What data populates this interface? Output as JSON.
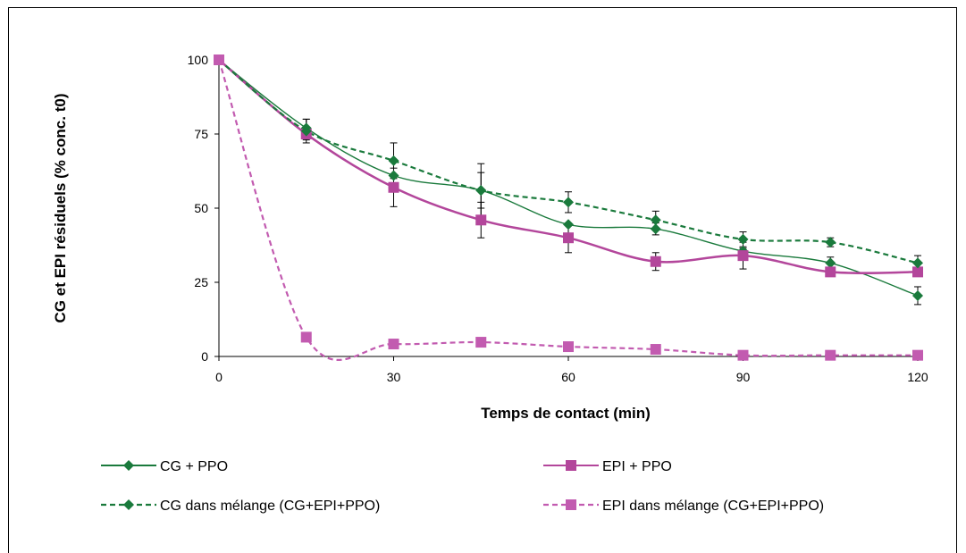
{
  "chart_data": {
    "type": "line",
    "title": "",
    "xlabel": "Temps de contact (min)",
    "ylabel": "CG et  EPI résiduels  (% conc. t0)",
    "xlim": [
      0,
      120
    ],
    "ylim": [
      0,
      100
    ],
    "xticks": [
      0,
      30,
      60,
      90,
      120
    ],
    "yticks": [
      0,
      25,
      50,
      75,
      100
    ],
    "grid": false,
    "legend_position": "bottom",
    "series": [
      {
        "name": "CG + PPO",
        "color": "#1a7a3c",
        "dash": "solid",
        "marker": "diamond",
        "x": [
          0,
          15,
          30,
          45,
          60,
          75,
          90,
          105,
          120
        ],
        "y": [
          100,
          77,
          61,
          56,
          44.5,
          43,
          35.5,
          31.5,
          20.5
        ],
        "err": [
          0,
          3,
          0,
          6,
          0,
          2,
          1,
          2,
          3
        ]
      },
      {
        "name": "EPI + PPO",
        "color": "#b3469b",
        "dash": "solid",
        "marker": "square",
        "x": [
          0,
          15,
          30,
          45,
          60,
          75,
          90,
          105,
          120
        ],
        "y": [
          100,
          75,
          57,
          46,
          40,
          32,
          34,
          28.5,
          28.5
        ],
        "err": [
          0,
          2,
          6.5,
          6,
          5,
          3,
          4.5,
          0,
          0
        ]
      },
      {
        "name": "CG dans mélange (CG+EPI+PPO)",
        "color": "#1a7a3c",
        "dash": "dashed",
        "marker": "diamond",
        "x": [
          0,
          15,
          30,
          45,
          60,
          75,
          90,
          105,
          120
        ],
        "y": [
          100,
          76,
          66,
          56,
          52,
          46,
          39.5,
          38.5,
          31.5
        ],
        "err": [
          0,
          4,
          6,
          9,
          3.5,
          3,
          2.5,
          1.5,
          2.5
        ]
      },
      {
        "name": "EPI dans mélange (CG+EPI+PPO)",
        "color": "#c25bb0",
        "dash": "dashed",
        "marker": "square",
        "x": [
          0,
          15,
          30,
          45,
          60,
          75,
          90,
          105,
          120
        ],
        "y": [
          100,
          6.5,
          4.2,
          4.8,
          3.3,
          2.4,
          0.4,
          0.4,
          0.4
        ],
        "err": [
          0,
          0,
          0,
          0,
          0,
          0,
          0,
          0,
          0
        ]
      }
    ]
  }
}
